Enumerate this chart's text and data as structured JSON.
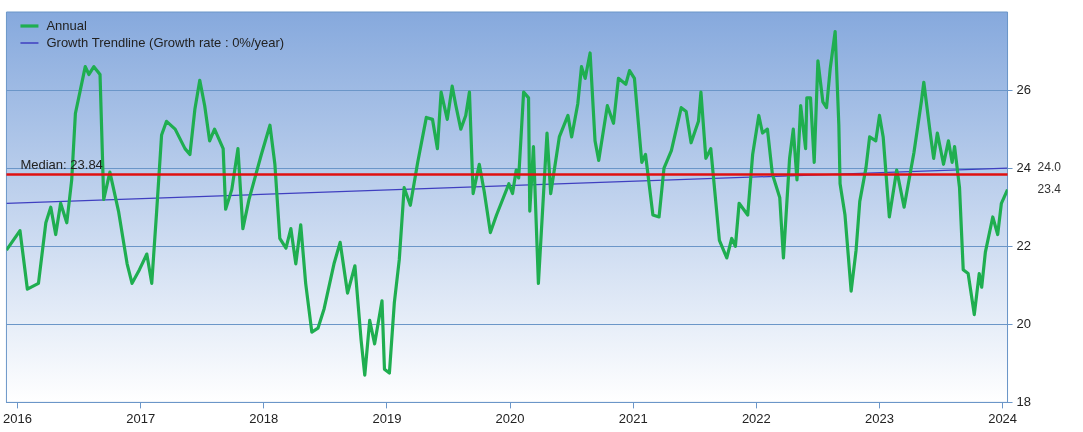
{
  "chart_data": {
    "type": "line",
    "xlim": [
      2015.91,
      2024.04
    ],
    "xticks": [
      2016,
      2017,
      2018,
      2019,
      2020,
      2021,
      2022,
      2023,
      2024
    ],
    "ylim": [
      18,
      28
    ],
    "yticks": [
      18,
      20,
      22,
      24,
      26
    ],
    "grid": "y",
    "legend": "top left",
    "marker": "none",
    "line_style": "solid",
    "series": [
      {
        "name": "Annual",
        "color": "#1fae50",
        "x": [
          2015.91,
          2016.02,
          2016.08,
          2016.17,
          2016.23,
          2016.27,
          2016.31,
          2016.35,
          2016.4,
          2016.44,
          2016.47,
          2016.51,
          2016.55,
          2016.58,
          2016.62,
          2016.67,
          2016.7,
          2016.75,
          2016.82,
          2016.89,
          2016.93,
          2016.99,
          2017.05,
          2017.09,
          2017.13,
          2017.17,
          2017.21,
          2017.28,
          2017.36,
          2017.4,
          2017.44,
          2017.48,
          2017.52,
          2017.56,
          2017.6,
          2017.67,
          2017.69,
          2017.74,
          2017.79,
          2017.83,
          2017.88,
          2017.98,
          2018.05,
          2018.09,
          2018.13,
          2018.18,
          2018.22,
          2018.26,
          2018.3,
          2018.34,
          2018.39,
          2018.44,
          2018.49,
          2018.57,
          2018.62,
          2018.68,
          2018.74,
          2018.79,
          2018.82,
          2018.86,
          2018.9,
          2018.96,
          2018.98,
          2019.02,
          2019.06,
          2019.1,
          2019.14,
          2019.19,
          2019.25,
          2019.32,
          2019.37,
          2019.41,
          2019.44,
          2019.49,
          2019.53,
          2019.56,
          2019.6,
          2019.64,
          2019.67,
          2019.7,
          2019.75,
          2019.79,
          2019.84,
          2019.89,
          2019.99,
          2020.02,
          2020.05,
          2020.07,
          2020.11,
          2020.15,
          2020.16,
          2020.19,
          2020.23,
          2020.3,
          2020.33,
          2020.4,
          2020.47,
          2020.5,
          2020.55,
          2020.58,
          2020.61,
          2020.65,
          2020.69,
          2020.72,
          2020.79,
          2020.84,
          2020.88,
          2020.94,
          2020.97,
          2021.01,
          2021.07,
          2021.1,
          2021.16,
          2021.21,
          2021.25,
          2021.31,
          2021.39,
          2021.43,
          2021.47,
          2021.53,
          2021.55,
          2021.59,
          2021.63,
          2021.7,
          2021.76,
          2021.8,
          2021.83,
          2021.86,
          2021.93,
          2021.97,
          2022.02,
          2022.05,
          2022.09,
          2022.13,
          2022.19,
          2022.22,
          2022.27,
          2022.3,
          2022.33,
          2022.36,
          2022.4,
          2022.41,
          2022.44,
          2022.47,
          2022.5,
          2022.54,
          2022.57,
          2022.6,
          2022.64,
          2022.67,
          2022.68,
          2022.72,
          2022.77,
          2022.81,
          2022.84,
          2022.89,
          2022.92,
          2022.97,
          2023.0,
          2023.03,
          2023.08,
          2023.14,
          2023.2,
          2023.28,
          2023.34,
          2023.36,
          2023.41,
          2023.44,
          2023.47,
          2023.52,
          2023.56,
          2023.59,
          2023.61,
          2023.65,
          2023.68,
          2023.72,
          2023.77,
          2023.81,
          2023.83,
          2023.86,
          2023.92,
          2023.96,
          2023.99,
          2024.04
        ],
        "values": [
          21.9,
          22.4,
          20.9,
          21.05,
          22.6,
          23.0,
          22.3,
          23.1,
          22.6,
          23.7,
          25.4,
          26.0,
          26.6,
          26.4,
          26.6,
          26.4,
          23.2,
          23.9,
          22.9,
          21.55,
          21.05,
          21.4,
          21.8,
          21.05,
          22.9,
          24.85,
          25.2,
          25.0,
          24.5,
          24.35,
          25.5,
          26.25,
          25.6,
          24.7,
          25.0,
          24.5,
          22.95,
          23.45,
          24.5,
          22.45,
          23.2,
          24.35,
          25.1,
          24.1,
          22.2,
          21.95,
          22.45,
          21.55,
          22.55,
          21.05,
          19.8,
          19.9,
          20.4,
          21.55,
          22.1,
          20.8,
          21.5,
          19.6,
          18.7,
          20.1,
          19.5,
          20.6,
          18.85,
          18.75,
          20.55,
          21.65,
          23.5,
          23.05,
          24.15,
          25.3,
          25.25,
          24.5,
          25.95,
          25.25,
          26.1,
          25.6,
          25.0,
          25.35,
          25.95,
          23.35,
          24.1,
          23.4,
          22.35,
          22.8,
          23.6,
          23.35,
          23.95,
          23.75,
          25.95,
          25.8,
          22.9,
          24.55,
          21.05,
          24.9,
          23.35,
          24.8,
          25.35,
          24.8,
          25.65,
          26.6,
          26.3,
          26.95,
          24.7,
          24.2,
          25.6,
          25.15,
          26.3,
          26.15,
          26.5,
          26.3,
          24.15,
          24.35,
          22.8,
          22.75,
          24.0,
          24.45,
          25.55,
          25.45,
          24.65,
          25.2,
          25.95,
          24.25,
          24.5,
          22.15,
          21.7,
          22.2,
          22.0,
          23.1,
          22.8,
          24.35,
          25.35,
          24.9,
          25.0,
          23.85,
          23.25,
          21.7,
          24.25,
          25.0,
          23.7,
          25.6,
          24.5,
          25.8,
          25.8,
          24.15,
          26.75,
          25.7,
          25.55,
          26.55,
          27.5,
          25.1,
          23.6,
          22.8,
          20.85,
          21.9,
          23.15,
          24.0,
          24.8,
          24.7,
          25.35,
          24.8,
          22.75,
          23.95,
          23.0,
          24.4,
          25.7,
          26.2,
          24.95,
          24.25,
          24.9,
          24.1,
          24.7,
          24.15,
          24.55,
          23.5,
          21.4,
          21.3,
          20.25,
          21.3,
          20.95,
          21.85,
          22.75,
          22.3,
          23.1,
          23.45
        ]
      },
      {
        "name": "Growth Trendline (Growth rate : 0%/year)",
        "color": "#3f3fc0",
        "x": [
          2015.91,
          2024.04
        ],
        "values": [
          23.1,
          24.0
        ]
      }
    ],
    "ref_lines": [
      {
        "axis": "y",
        "value": 23.84,
        "label": "Median: 23.84",
        "color": "#e01010"
      }
    ],
    "annotations": [
      {
        "text": "24.0",
        "x": 2024.04,
        "y": 24.0
      },
      {
        "text": "23.4",
        "x": 2024.04,
        "y": 23.45
      }
    ]
  }
}
